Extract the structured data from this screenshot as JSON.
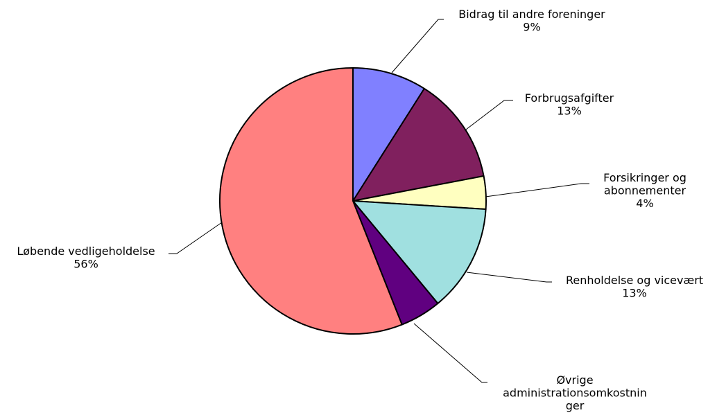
{
  "chart_data": {
    "type": "pie",
    "title": "",
    "slices": [
      {
        "label_lines": [
          "Bidrag til andre foreninger"
        ],
        "percent_label": "9%",
        "value": 9,
        "color": "#8080ff"
      },
      {
        "label_lines": [
          "Forbrugsafgifter"
        ],
        "percent_label": "13%",
        "value": 13,
        "color": "#80205e"
      },
      {
        "label_lines": [
          "Forsikringer og",
          "abonnementer"
        ],
        "percent_label": "4%",
        "value": 4,
        "color": "#ffffc0"
      },
      {
        "label_lines": [
          "Renholdelse og vicevært"
        ],
        "percent_label": "13%",
        "value": 13,
        "color": "#a0e0e0"
      },
      {
        "label_lines": [
          "Øvrige",
          "administrationsomkostnin",
          "ger"
        ],
        "percent_label": "5%",
        "value": 5,
        "color": "#600080"
      },
      {
        "label_lines": [
          "Løbende vedligeholdelse"
        ],
        "percent_label": "56%",
        "value": 56,
        "color": "#ff8080"
      }
    ]
  }
}
